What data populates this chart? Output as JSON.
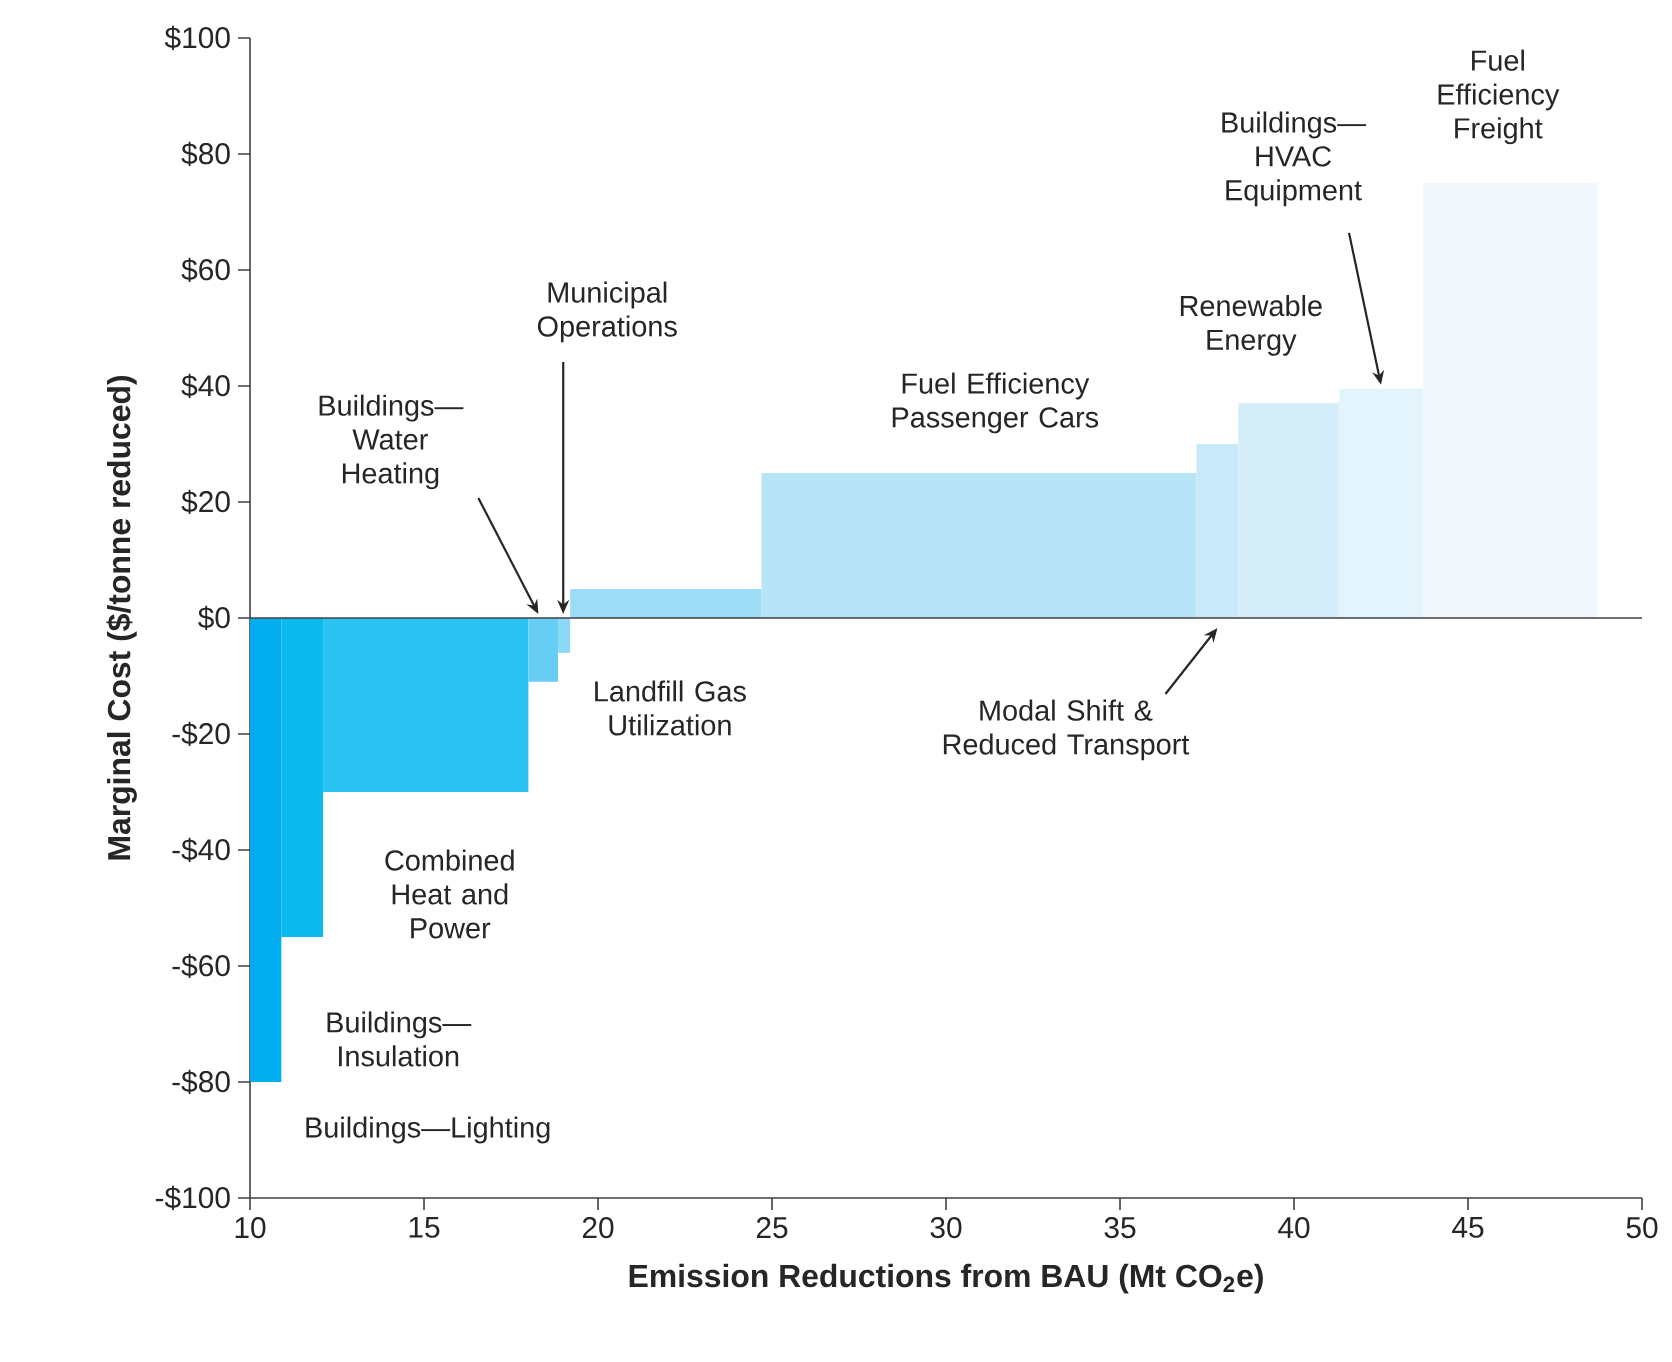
{
  "chart_data": {
    "type": "histogram",
    "xlabel": "Emission Reductions from BAU (Mt CO$_{2}$e)",
    "ylabel": "Marginal Cost ($/tonne reduced)",
    "bins": [
      10,
      10.9,
      12.1,
      18,
      18.85,
      19.2,
      24.7,
      37.2,
      38.4,
      41.3,
      43.7,
      48.7
    ],
    "values": [
      -80,
      -55,
      -30,
      -11,
      -6,
      5,
      25,
      30,
      37,
      39.5,
      75
    ],
    "colors": [
      "#00aeef",
      "#0bbbf0",
      "#2cc3f2",
      "#66cdf4",
      "#8cd8f6",
      "#9cdcf6",
      "#b8e4f8",
      "#c8eaf8",
      "#d6edfa",
      "#e4f4fc",
      "#f0f8fe"
    ],
    "xlim": [
      10,
      50
    ],
    "xticks": [
      10,
      15,
      20,
      25,
      30,
      35,
      40,
      45,
      50
    ],
    "ylim": [
      -100,
      100
    ],
    "yticks": [
      {
        "value": -100,
        "label": "-$100"
      },
      {
        "value": -80,
        "label": "-$80"
      },
      {
        "value": -60,
        "label": "-$60"
      },
      {
        "value": -40,
        "label": "-$40"
      },
      {
        "value": -20,
        "label": "-$20"
      },
      {
        "value": 0,
        "label": "$0"
      },
      {
        "value": 20,
        "label": "$20"
      },
      {
        "value": 40,
        "label": "$40"
      },
      {
        "value": 60,
        "label": "$60"
      },
      {
        "value": 80,
        "label": "$80"
      },
      {
        "value": 100,
        "label": "$100"
      }
    ],
    "ref_lines": [
      {
        "axis": "y",
        "value": 0
      }
    ],
    "grid": false,
    "annotations": [
      {
        "text": "Buildings—Lighting",
        "x": 10.45,
        "y": -80
      },
      {
        "text": "Buildings—Insulation",
        "x": 11.5,
        "y": -55
      },
      {
        "text": "Combined Heat and Power",
        "x": 15.05,
        "y": -30
      },
      {
        "text": "Buildings—Water Heating",
        "x": 18.4,
        "y": 0
      },
      {
        "text": "Municipal Operations",
        "x": 19.0,
        "y": 0
      },
      {
        "text": "Landfill Gas Utilization",
        "x": 21.95,
        "y": 0
      },
      {
        "text": "Fuel Efficiency Passenger Cars",
        "x": 31,
        "y": 25
      },
      {
        "text": "Modal Shift & Reduced Transport",
        "x": 37.8,
        "y": 0
      },
      {
        "text": "Renewable Energy",
        "x": 39.85,
        "y": 37
      },
      {
        "text": "Buildings—HVAC Equipment",
        "x": 42.5,
        "y": 39.5
      },
      {
        "text": "Fuel Efficiency Freight",
        "x": 46.2,
        "y": 75
      }
    ]
  }
}
